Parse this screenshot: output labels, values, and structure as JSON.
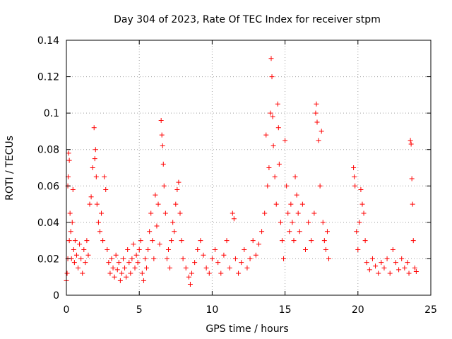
{
  "chart_data": {
    "type": "scatter",
    "title": "Day 304 of 2023, Rate Of TEC Index for receiver stpm",
    "xlabel": "GPS time / hours",
    "ylabel": "ROTI / TECUs",
    "xlim": [
      0,
      25
    ],
    "ylim": [
      0,
      0.14
    ],
    "x_ticks": [
      0,
      5,
      10,
      15,
      20,
      25
    ],
    "x_tick_labels": [
      "0",
      "5",
      "10",
      "15",
      "20",
      "25"
    ],
    "y_ticks": [
      0,
      0.02,
      0.04,
      0.06,
      0.08,
      0.1,
      0.12,
      0.14
    ],
    "y_tick_labels": [
      "0",
      "0.02",
      "0.04",
      "0.06",
      "0.08",
      "0.1",
      "0.12",
      "0.14"
    ],
    "grid": true,
    "legend": "none",
    "marker": "plus",
    "color": "#ff0000",
    "series": [
      {
        "points": [
          [
            0.0,
            0.008
          ],
          [
            0.05,
            0.012
          ],
          [
            0.1,
            0.02
          ],
          [
            0.1,
            0.06
          ],
          [
            0.12,
            0.065
          ],
          [
            0.15,
            0.078
          ],
          [
            0.2,
            0.074
          ],
          [
            0.2,
            0.03
          ],
          [
            0.25,
            0.045
          ],
          [
            0.3,
            0.035
          ],
          [
            0.35,
            0.02
          ],
          [
            0.4,
            0.04
          ],
          [
            0.45,
            0.058
          ],
          [
            0.5,
            0.025
          ],
          [
            0.55,
            0.018
          ],
          [
            0.6,
            0.03
          ],
          [
            0.7,
            0.022
          ],
          [
            0.8,
            0.015
          ],
          [
            0.9,
            0.028
          ],
          [
            1.0,
            0.02
          ],
          [
            1.1,
            0.012
          ],
          [
            1.2,
            0.025
          ],
          [
            1.3,
            0.018
          ],
          [
            1.4,
            0.03
          ],
          [
            1.5,
            0.022
          ],
          [
            1.6,
            0.05
          ],
          [
            1.7,
            0.054
          ],
          [
            1.8,
            0.07
          ],
          [
            1.9,
            0.092
          ],
          [
            1.95,
            0.075
          ],
          [
            2.0,
            0.08
          ],
          [
            2.05,
            0.065
          ],
          [
            2.1,
            0.05
          ],
          [
            2.2,
            0.04
          ],
          [
            2.3,
            0.035
          ],
          [
            2.4,
            0.045
          ],
          [
            2.5,
            0.03
          ],
          [
            2.6,
            0.065
          ],
          [
            2.7,
            0.058
          ],
          [
            2.8,
            0.025
          ],
          [
            2.9,
            0.018
          ],
          [
            3.0,
            0.012
          ],
          [
            3.1,
            0.02
          ],
          [
            3.2,
            0.015
          ],
          [
            3.3,
            0.01
          ],
          [
            3.4,
            0.022
          ],
          [
            3.5,
            0.014
          ],
          [
            3.6,
            0.018
          ],
          [
            3.7,
            0.008
          ],
          [
            3.8,
            0.012
          ],
          [
            3.9,
            0.02
          ],
          [
            4.0,
            0.015
          ],
          [
            4.1,
            0.01
          ],
          [
            4.2,
            0.025
          ],
          [
            4.3,
            0.018
          ],
          [
            4.4,
            0.012
          ],
          [
            4.5,
            0.02
          ],
          [
            4.6,
            0.028
          ],
          [
            4.7,
            0.015
          ],
          [
            4.8,
            0.022
          ],
          [
            4.9,
            0.018
          ],
          [
            5.0,
            0.025
          ],
          [
            5.1,
            0.03
          ],
          [
            5.2,
            0.012
          ],
          [
            5.3,
            0.008
          ],
          [
            5.4,
            0.02
          ],
          [
            5.5,
            0.015
          ],
          [
            5.6,
            0.025
          ],
          [
            5.7,
            0.035
          ],
          [
            5.8,
            0.045
          ],
          [
            5.9,
            0.03
          ],
          [
            6.0,
            0.02
          ],
          [
            6.1,
            0.055
          ],
          [
            6.2,
            0.038
          ],
          [
            6.3,
            0.05
          ],
          [
            6.4,
            0.028
          ],
          [
            6.5,
            0.096
          ],
          [
            6.55,
            0.088
          ],
          [
            6.6,
            0.082
          ],
          [
            6.65,
            0.072
          ],
          [
            6.7,
            0.06
          ],
          [
            6.8,
            0.045
          ],
          [
            6.9,
            0.02
          ],
          [
            7.0,
            0.025
          ],
          [
            7.1,
            0.015
          ],
          [
            7.2,
            0.03
          ],
          [
            7.3,
            0.04
          ],
          [
            7.4,
            0.035
          ],
          [
            7.5,
            0.05
          ],
          [
            7.6,
            0.058
          ],
          [
            7.7,
            0.062
          ],
          [
            7.8,
            0.045
          ],
          [
            7.9,
            0.03
          ],
          [
            8.0,
            0.02
          ],
          [
            8.2,
            0.015
          ],
          [
            8.4,
            0.01
          ],
          [
            8.5,
            0.006
          ],
          [
            8.6,
            0.012
          ],
          [
            8.8,
            0.018
          ],
          [
            9.0,
            0.025
          ],
          [
            9.2,
            0.03
          ],
          [
            9.4,
            0.022
          ],
          [
            9.6,
            0.015
          ],
          [
            9.8,
            0.012
          ],
          [
            10.0,
            0.02
          ],
          [
            10.2,
            0.025
          ],
          [
            10.4,
            0.018
          ],
          [
            10.6,
            0.012
          ],
          [
            10.8,
            0.022
          ],
          [
            11.0,
            0.03
          ],
          [
            11.2,
            0.015
          ],
          [
            11.4,
            0.045
          ],
          [
            11.5,
            0.042
          ],
          [
            11.6,
            0.02
          ],
          [
            11.8,
            0.012
          ],
          [
            12.0,
            0.018
          ],
          [
            12.2,
            0.025
          ],
          [
            12.4,
            0.015
          ],
          [
            12.6,
            0.02
          ],
          [
            12.8,
            0.03
          ],
          [
            13.0,
            0.022
          ],
          [
            13.2,
            0.028
          ],
          [
            13.4,
            0.035
          ],
          [
            13.6,
            0.045
          ],
          [
            13.7,
            0.088
          ],
          [
            13.8,
            0.06
          ],
          [
            13.9,
            0.07
          ],
          [
            14.0,
            0.1
          ],
          [
            14.05,
            0.13
          ],
          [
            14.1,
            0.12
          ],
          [
            14.15,
            0.098
          ],
          [
            14.2,
            0.082
          ],
          [
            14.3,
            0.065
          ],
          [
            14.4,
            0.05
          ],
          [
            14.5,
            0.105
          ],
          [
            14.55,
            0.092
          ],
          [
            14.6,
            0.072
          ],
          [
            14.7,
            0.04
          ],
          [
            14.8,
            0.03
          ],
          [
            14.9,
            0.02
          ],
          [
            15.0,
            0.085
          ],
          [
            15.1,
            0.06
          ],
          [
            15.2,
            0.045
          ],
          [
            15.3,
            0.035
          ],
          [
            15.4,
            0.05
          ],
          [
            15.5,
            0.04
          ],
          [
            15.6,
            0.03
          ],
          [
            15.7,
            0.065
          ],
          [
            15.8,
            0.055
          ],
          [
            15.9,
            0.045
          ],
          [
            16.0,
            0.035
          ],
          [
            16.2,
            0.05
          ],
          [
            16.4,
            0.025
          ],
          [
            16.6,
            0.04
          ],
          [
            16.8,
            0.03
          ],
          [
            17.0,
            0.045
          ],
          [
            17.1,
            0.1
          ],
          [
            17.15,
            0.105
          ],
          [
            17.2,
            0.095
          ],
          [
            17.3,
            0.085
          ],
          [
            17.4,
            0.06
          ],
          [
            17.5,
            0.09
          ],
          [
            17.6,
            0.04
          ],
          [
            17.7,
            0.03
          ],
          [
            17.8,
            0.025
          ],
          [
            17.9,
            0.035
          ],
          [
            18.0,
            0.02
          ],
          [
            19.7,
            0.07
          ],
          [
            19.75,
            0.065
          ],
          [
            19.8,
            0.06
          ],
          [
            19.9,
            0.035
          ],
          [
            20.0,
            0.025
          ],
          [
            20.1,
            0.04
          ],
          [
            20.2,
            0.058
          ],
          [
            20.3,
            0.05
          ],
          [
            20.4,
            0.045
          ],
          [
            20.5,
            0.03
          ],
          [
            20.6,
            0.018
          ],
          [
            20.8,
            0.014
          ],
          [
            21.0,
            0.02
          ],
          [
            21.2,
            0.016
          ],
          [
            21.4,
            0.012
          ],
          [
            21.6,
            0.018
          ],
          [
            21.8,
            0.015
          ],
          [
            22.0,
            0.02
          ],
          [
            22.2,
            0.012
          ],
          [
            22.4,
            0.025
          ],
          [
            22.6,
            0.018
          ],
          [
            22.8,
            0.014
          ],
          [
            23.0,
            0.02
          ],
          [
            23.2,
            0.015
          ],
          [
            23.4,
            0.018
          ],
          [
            23.5,
            0.012
          ],
          [
            23.6,
            0.085
          ],
          [
            23.65,
            0.083
          ],
          [
            23.7,
            0.064
          ],
          [
            23.75,
            0.05
          ],
          [
            23.8,
            0.03
          ],
          [
            23.9,
            0.015
          ],
          [
            24.0,
            0.013
          ]
        ]
      }
    ]
  }
}
